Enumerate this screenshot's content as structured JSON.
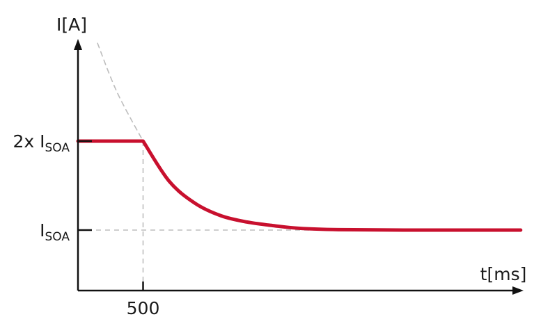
{
  "chart_data": {
    "type": "line",
    "title": "",
    "xlabel": "t[ms]",
    "ylabel": "I[A]",
    "xticks": [
      {
        "value": 500,
        "label": "500"
      }
    ],
    "yticks": [
      {
        "value": 1,
        "label": "I",
        "sub": "SOA"
      },
      {
        "value": 2,
        "label": "2x I",
        "sub": "SOA"
      }
    ],
    "grid": false,
    "legend": "none",
    "series": [
      {
        "role": "limit-curve",
        "style": "solid",
        "color": "#c8102e",
        "points": [
          [
            0,
            2.0
          ],
          [
            500,
            2.0
          ],
          [
            700,
            1.55
          ],
          [
            900,
            1.3
          ],
          [
            1100,
            1.16
          ],
          [
            1300,
            1.09
          ],
          [
            1500,
            1.05
          ],
          [
            1700,
            1.02
          ],
          [
            2000,
            1.005
          ],
          [
            2500,
            1.0
          ],
          [
            3400,
            1.0
          ]
        ]
      },
      {
        "role": "extrapolated-curve",
        "style": "dashed",
        "color": "#bdbdbd",
        "points": [
          [
            150,
            3.1
          ],
          [
            300,
            2.55
          ],
          [
            500,
            2.0
          ]
        ]
      }
    ],
    "guides": [
      {
        "type": "vertical",
        "x": 500,
        "from": 0,
        "to": 2.0,
        "color": "#bdbdbd"
      },
      {
        "type": "horizontal",
        "y": 1.0,
        "from": 0,
        "to": 2000,
        "color": "#bdbdbd"
      }
    ],
    "colors": {
      "axis": "#111111",
      "curve": "#c8102e",
      "guide": "#bdbdbd"
    }
  }
}
